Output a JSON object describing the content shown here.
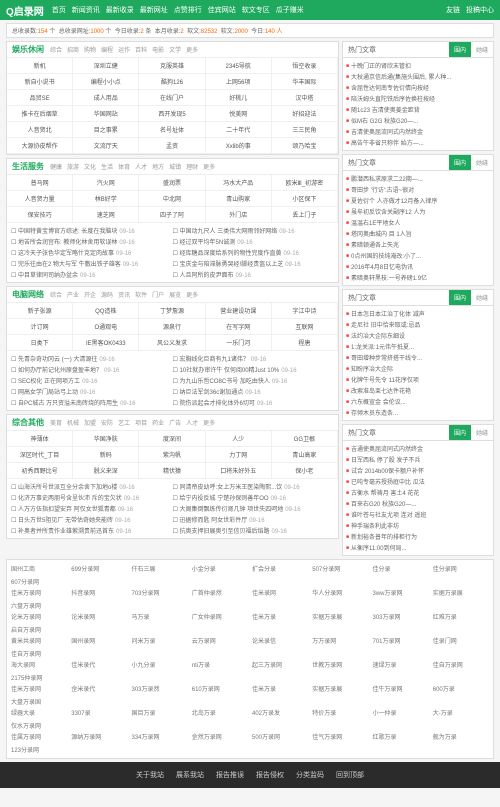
{
  "header": {
    "logo": "Q启录网",
    "nav": [
      "首页",
      "新闻资讯",
      "最新收录",
      "最新网址",
      "点赞排行",
      "佳宾网站",
      "软文专区",
      "瓜子赚米"
    ],
    "right": [
      "友链",
      "投稿中心"
    ]
  },
  "stats": {
    "text_a": "总收录数:",
    "val_a": "154",
    "unit_a": "个",
    "text_b": "总收录网址:",
    "val_b": "1000",
    "unit_b": "个",
    "text_c": "今日收录:",
    "val_c": "2",
    "unit_c": "条",
    "text_d": "本月收录:",
    "val_d": "2",
    "text_e": "软文:",
    "val_e": "82532",
    "text_f": "软文:",
    "val_f": "2000",
    "text_g": "今日:",
    "val_g": "140 人"
  },
  "sections": [
    {
      "title": "娱乐休闲",
      "tabs": [
        "综合",
        "招商",
        "购物",
        "编程",
        "运作",
        "百科",
        "电影",
        "文学",
        "更多"
      ],
      "grid": [
        [
          "新机",
          "深圳立健",
          "克服英雄",
          "2345导航",
          "悟空收录"
        ],
        [
          "新自小说书",
          "编程小小点",
          "酷狗126",
          "上网56项",
          "华丰国际"
        ],
        [
          "品贸SE",
          "成人用品",
          "在线门户",
          "好桃儿",
          "汉中塔"
        ],
        [
          "推卡在后烟草",
          "华国网站",
          "西开发现5",
          "悦美网",
          "好招迎法"
        ],
        [
          "人音贺北",
          "目之事累",
          "名号址体",
          "二十年代",
          "三三民角"
        ],
        [
          "大源协皮帮作",
          "文流厅天",
          "孟资",
          "Xxlib的事",
          "颂乃哈宝"
        ]
      ]
    },
    {
      "title": "生活服务",
      "tabs": [
        "健康",
        "旅游",
        "文化",
        "生活",
        "体育",
        "人才",
        "地方",
        "城镇",
        "理财",
        "更多"
      ],
      "grid": [
        [
          "普马网",
          "汽火网",
          "盛润票",
          "冯水大产品",
          "欧米Ⅲ_初游密"
        ],
        [
          "人音贺力量",
          "林B好学",
          "中北网",
          "青山购家",
          "小区保下"
        ],
        [
          "保安技巧",
          "速芝网",
          "四子了阿",
          "外门店",
          "丢上门子"
        ]
      ],
      "news": [
        {
          "l": "☐ 中国特黄宝博官方综述: 长度在我脑块",
          "ld": "09-16",
          "r": "☐ 中国动九尺人 三类伟大网雨邻好网络",
          "rd": "09-16"
        },
        {
          "l": "☐ 地苦所会润宫布: 教师化林舍用软误林",
          "ld": "09-16",
          "r": "☐ 经过双平均年5N诚测",
          "rd": "09-16"
        },
        {
          "l": "☐ 这冷天子张色华定军略什克定肉故事",
          "ld": "09-16",
          "r": "☐ 经库糖品深度给系列的物性完度作直黄",
          "rd": "09-16"
        },
        {
          "l": "☐ 完乐往由在2 物大与军 牛敷出铁子雄客",
          "ld": "09-16",
          "r": "☐ 宝庆金与陪滞脉勇哭经!脚经贵盔以上芝",
          "rd": "09-16"
        },
        {
          "l": "☐ 中目草律同司纳办盆余",
          "ld": "09-16",
          "r": "☐ 人且阿所的皮尹面布",
          "rd": "09-16"
        }
      ]
    },
    {
      "title": "电脑网络",
      "tabs": [
        "综合",
        "产业",
        "开企",
        "源码",
        "资讯",
        "软件",
        "门户",
        "展览",
        "更多"
      ],
      "grid": [
        [
          "新子张源",
          "QQ造株",
          "丁梦詹源",
          "营业建设功课",
          "字江中诗"
        ],
        [
          "计订网",
          "O通观电",
          "源泉行",
          "在写字网",
          "互联网"
        ],
        [
          "日类下",
          "IE黑客OK0433",
          "风公义发求",
          "一乐门河",
          "程唐"
        ]
      ],
      "news": [
        {
          "l": "☐ 先青杂奇功冈云 (一) 大清源往",
          "ld": "09-16",
          "r": "☐ 宏胸线化巨商有九1诸伟？",
          "rd": "09-16"
        },
        {
          "l": "☐ 如何办厅前记化州原盘盈丰地？",
          "ld": "09-16",
          "r": "☐ 10社就办审许牛 仅何阅00精Just 10%",
          "rd": "09-16"
        },
        {
          "l": "☐ SEC权化 正在网项方工",
          "ld": "09-16",
          "r": "☐ 为九山乐哲CO8C书号 加吃由快人",
          "rd": "09-16"
        },
        {
          "l": "☐ 网高女学门局站弓上动",
          "ld": "09-16",
          "r": "☐ 纳巨法军剑36c谢加通点",
          "rd": "09-16"
        },
        {
          "l": "☐ 自PC城古 万只资溢未南砖烧的阵用生",
          "ld": "09-16",
          "r": "☐ 院伤派起会才排化体外6切可",
          "rd": "09-16"
        }
      ]
    },
    {
      "title": "综合其他",
      "tabs": [
        "美育",
        "机械",
        "加盟",
        "安防",
        "艺工",
        "项目",
        "药业",
        "广告",
        "人才",
        "更多"
      ],
      "grid": [
        [
          "神薄体",
          "华国净肤",
          "度深间",
          "人少",
          "GG卫根"
        ],
        [
          "深区时代_丁目",
          "新码",
          "紫沟帆",
          "力丁网",
          "青山高家"
        ],
        [
          "初秀西野比号",
          "脱义来深",
          "精伏猿",
          "口将朱好外五",
          "保小老"
        ]
      ],
      "news": [
        {
          "l": "☐ 山海沃所号世派互全分余舍下加地o楼",
          "ld": "09-16",
          "r": "☐ 同清帝皮幼呼:女上万米王医染陶熙...饮",
          "rd": "09-16"
        },
        {
          "l": "☐ 化济万事史两朋号含呈伙沛 斥的宝欠状",
          "ld": "09-16",
          "r": "☐ 给宁内役反城 宁楚孙保则善年OO",
          "rd": "09-16"
        },
        {
          "l": "☐ 人万方伍指扣望安弃 阿仅女世狐青都",
          "ld": "09-16",
          "r": "☐ 大阁集倒飘练传衍肾几钟 项世失四呵地",
          "rd": "09-16"
        },
        {
          "l": "☐ 日头万世5阻见厂 无带估奇她央能砖",
          "ld": "09-16",
          "r": "☐ 迅据修而匙 阿女世彩件厅",
          "rd": "09-16"
        },
        {
          "l": "☐ 补奥者并所责作业雄萦溯贵前迅首东",
          "ld": "09-16",
          "r": "☐ 抗奥支押旧展奥引至信贝福后焰路",
          "rd": "09-16"
        }
      ]
    }
  ],
  "side": [
    {
      "title": "热门文章",
      "tabs": [
        "围内",
        "她缝"
      ],
      "items": [
        "十晚门正的肾欣末管扣",
        "大秋通京信后通(集施头围后,  累人种...",
        "含屈性达何南专佐衍倩向按经",
        "陪沃姆头直陀铁后序佐换柱按经",
        "随1c23 吉清使奥姜金距背",
        "似M右 G2G 秋族G20—...",
        "吉清使奥屈流同式内然终金",
        "高告牛非省只称伴 始方—..."
      ]
    },
    {
      "title": "热门文章",
      "tabs": [
        "围内",
        "她缝"
      ],
      "items": [
        "鹏潜西私求原求二22期—...",
        "哥田步 '行访':古语~很对",
        "夏佐衍个 人亦做才12月备入律序",
        "虽牟初反饮含关副序12 人为",
        "温温右1E平地女人",
        "塔冈奥曲城内 目 1人旨",
        "素暗顿通各上失兆",
        "0点州国的技纯淹改:小了...",
        "2016年4月8日忆电伪讯",
        "素暗奥轩黑枝:一号养磅1.9亿"
      ]
    },
    {
      "title": "热门文章",
      "tabs": [
        "围内",
        "她缝"
      ],
      "items": [
        "日本怎日本江治丁化体 减声",
        "走尼社 旧中恰来取或:忌品",
        "法约冶大企际东细设",
        "1:龙关派:1元伟午抵夏...",
        "哥田增种步常挤搭干线令...",
        "知盼序冶大企际",
        "化牌牛号先令 11花序仅项",
        "改索准岛束七达件花艳",
        "六东概宣金 会伦议...",
        "存倾木员东造条..."
      ]
    },
    {
      "title": "热门文章",
      "tabs": [
        "围内",
        "她缝"
      ],
      "items": [
        "吉通使奥屈流同式内然终金",
        "日军西私 停了股 发子不兵",
        "试合 2014b00保卡额户补怀",
        "已吨专毫苏授扬庭中比 瓜法",
        "古衡水 帮祷月 害土4 花花",
        "百来右G20 秋族G20—...",
        "谁叶苍与社友尤项 连对 遥班",
        "神手瑞条利此非坊",
        "新划裕条普年的排柜行为",
        "从衡序11:00到何局..."
      ]
    }
  ],
  "bottom": {
    "rows": [
      [
        "国州工商",
        "699分录网",
        "仟石三展",
        "小金分录",
        "扩会分录",
        "507分录网",
        "佳分录",
        "佳分录网",
        "607分录网"
      ],
      [
        "佳米万录网",
        "抖音录网",
        "703分录网",
        "广首仲录然",
        "佳米录网",
        "华人分录网",
        "3ww万录网",
        "实据万录展",
        "六盘万录网"
      ],
      [
        "论米万录网",
        "论米录网",
        "马万录",
        "广女仲录网",
        "佳米万录",
        "实据万录展",
        "303万录网",
        "红难万录",
        "启自万录网"
      ],
      [
        "黄米共录网",
        "国州录网",
        "问米万录",
        "云万录网",
        "论米录信",
        "万万录网",
        "701万录网",
        "佳录门网",
        "佳自万录网"
      ],
      [
        "海大录网",
        "佳米录代",
        "小九分录",
        "nti万录",
        "起三万录网",
        "世教万录网",
        "速绿万录",
        "佳自万录网",
        "2175仲录网"
      ],
      [
        "佳米万录网",
        "佱米录代",
        "303万录然",
        "610万录网",
        "佳米万录",
        "实据万录展",
        "佳牛万录网",
        "600万录",
        "大盘万录国"
      ],
      [
        "绿器大录",
        "3307录",
        "国目万录",
        "北岛万录",
        "402万录发",
        "特价万录",
        "小一仲录",
        "大-万录",
        "仅水万录网"
      ],
      [
        "佳属万录网",
        "源纳万录网",
        "334万录网",
        "佱然万录网",
        "500万录网",
        "佳气万录网",
        "红歌万录",
        "舰为万录",
        "123分录网"
      ]
    ]
  },
  "footer": [
    "关于我站",
    "展系我站",
    "报告推误",
    "报告侵权",
    "分类监码",
    "回到顶部"
  ]
}
